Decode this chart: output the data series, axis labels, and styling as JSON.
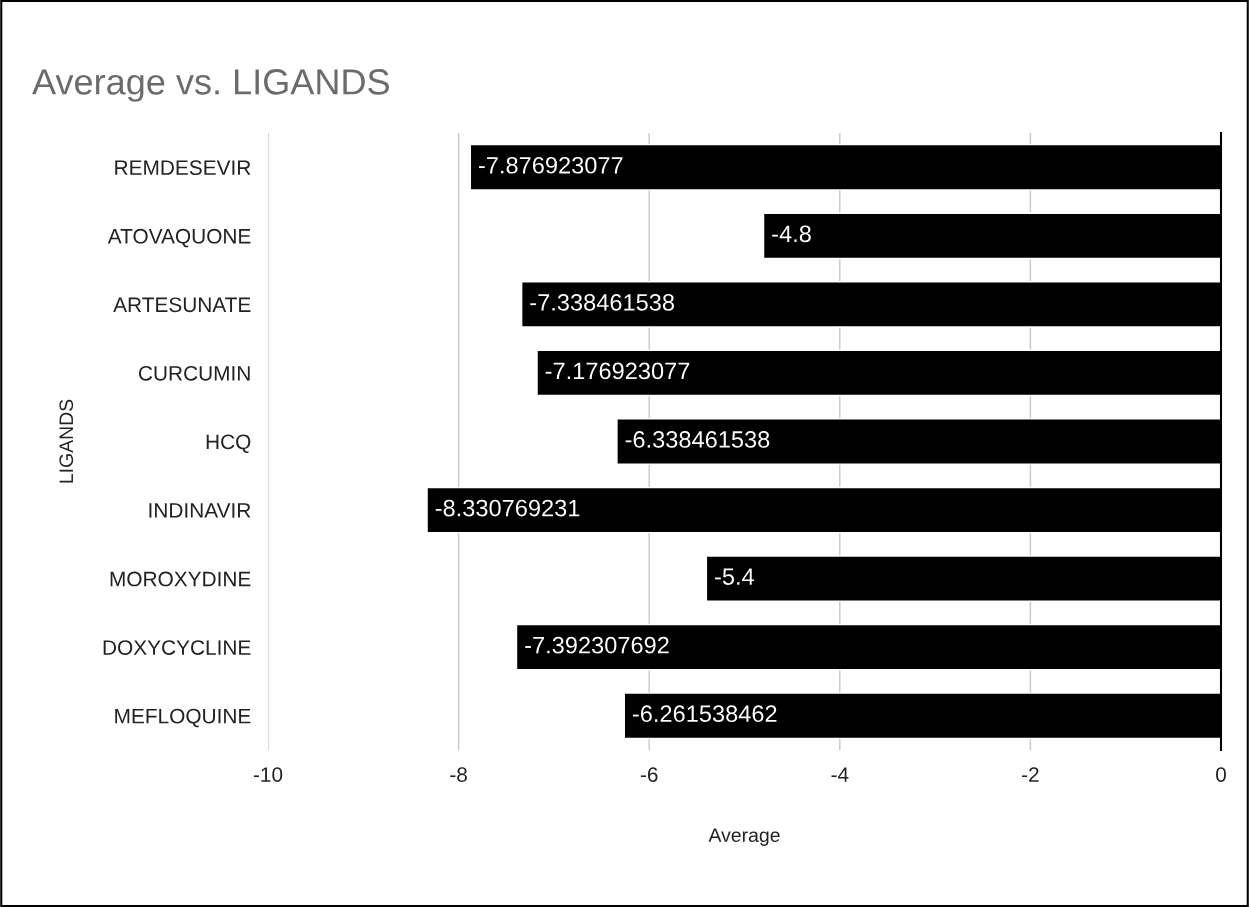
{
  "chart_data": {
    "type": "bar",
    "orientation": "horizontal",
    "title": "Average vs. LIGANDS",
    "xlabel": "Average",
    "ylabel": "LIGANDS",
    "categories": [
      "REMDESEVIR",
      "ATOVAQUONE",
      "ARTESUNATE",
      "CURCUMIN",
      "HCQ",
      "INDINAVIR",
      "MOROXYDINE",
      "DOXYCYCLINE",
      "MEFLOQUINE"
    ],
    "values": [
      -7.876923077,
      -4.8,
      -7.338461538,
      -7.176923077,
      -6.338461538,
      -8.330769231,
      -5.4,
      -7.392307692,
      -6.261538462
    ],
    "color": "#000000",
    "xlim": [
      -10,
      0
    ],
    "xticks": [
      -10,
      -8,
      -6,
      -4,
      -2,
      0
    ],
    "grid": "x",
    "data_labels": true,
    "legend": false
  }
}
